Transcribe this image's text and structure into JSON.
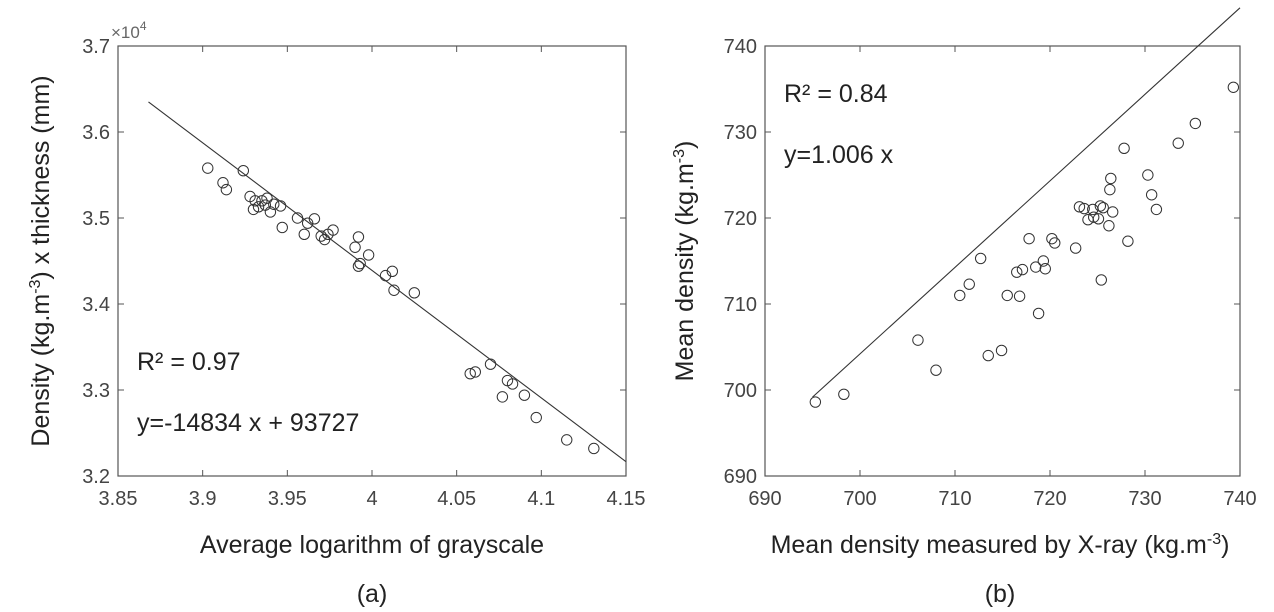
{
  "chart_data": [
    {
      "type": "scatter",
      "panel_label": "(a)",
      "title": "",
      "xlabel": "Average logarithm of grayscale",
      "ylabel_parts": [
        "Density (kg.m",
        "-3",
        ") x thickness (mm)"
      ],
      "xlim": [
        3.85,
        4.15
      ],
      "ylim": [
        32000,
        37000
      ],
      "xticks": [
        3.85,
        3.9,
        3.95,
        4.0,
        4.05,
        4.1,
        4.15
      ],
      "xtick_labels": [
        "3.85",
        "3.9",
        "3.95",
        "4",
        "4.05",
        "4.1",
        "4.15"
      ],
      "yticks": [
        32000,
        33000,
        34000,
        35000,
        36000,
        37000
      ],
      "ytick_labels": [
        "3.2",
        "3.3",
        "3.4",
        "3.5",
        "3.6",
        "3.7"
      ],
      "y_exponent_label": {
        "base": "×10",
        "exp": "4"
      },
      "grid": false,
      "annotations": [
        "R² = 0.97",
        "y=-14834 x + 93727"
      ],
      "fit_line": {
        "slope": -14834,
        "intercept": 93727,
        "x_range": [
          3.868,
          4.15
        ]
      },
      "marker": "open-circle",
      "points": [
        [
          3.903,
          35580
        ],
        [
          3.912,
          35410
        ],
        [
          3.914,
          35330
        ],
        [
          3.924,
          35550
        ],
        [
          3.928,
          35250
        ],
        [
          3.93,
          35100
        ],
        [
          3.931,
          35200
        ],
        [
          3.933,
          35130
        ],
        [
          3.935,
          35200
        ],
        [
          3.937,
          35150
        ],
        [
          3.938,
          35230
        ],
        [
          3.94,
          35070
        ],
        [
          3.942,
          35160
        ],
        [
          3.946,
          35140
        ],
        [
          3.947,
          34890
        ],
        [
          3.956,
          35000
        ],
        [
          3.96,
          34810
        ],
        [
          3.962,
          34940
        ],
        [
          3.966,
          34990
        ],
        [
          3.97,
          34790
        ],
        [
          3.972,
          34750
        ],
        [
          3.974,
          34810
        ],
        [
          3.977,
          34860
        ],
        [
          3.99,
          34660
        ],
        [
          3.992,
          34440
        ],
        [
          3.992,
          34780
        ],
        [
          3.993,
          34470
        ],
        [
          3.998,
          34570
        ],
        [
          4.008,
          34330
        ],
        [
          4.012,
          34380
        ],
        [
          4.013,
          34160
        ],
        [
          4.025,
          34130
        ],
        [
          4.058,
          33190
        ],
        [
          4.061,
          33210
        ],
        [
          4.07,
          33300
        ],
        [
          4.077,
          32920
        ],
        [
          4.08,
          33110
        ],
        [
          4.083,
          33070
        ],
        [
          4.09,
          32940
        ],
        [
          4.097,
          32680
        ],
        [
          4.115,
          32420
        ],
        [
          4.131,
          32320
        ]
      ]
    },
    {
      "type": "scatter",
      "panel_label": "(b)",
      "title": "",
      "xlabel_parts": [
        "Mean density measured by X-ray (kg.m",
        "-3",
        ")"
      ],
      "ylabel_parts": [
        "Mean density (kg.m",
        "-3",
        ")"
      ],
      "xlim": [
        690,
        740
      ],
      "ylim": [
        690,
        740
      ],
      "xticks": [
        690,
        700,
        710,
        720,
        730,
        740
      ],
      "xtick_labels": [
        "690",
        "700",
        "710",
        "720",
        "730",
        "740"
      ],
      "yticks": [
        690,
        700,
        710,
        720,
        730,
        740
      ],
      "ytick_labels": [
        "690",
        "700",
        "710",
        "720",
        "730",
        "740"
      ],
      "grid": false,
      "annotations": [
        "R² = 0.84",
        "y=1.006 x"
      ],
      "fit_line": {
        "slope": 1.006,
        "intercept": 0,
        "x_range": [
          695,
          740
        ]
      },
      "marker": "open-circle",
      "points": [
        [
          695.3,
          698.6
        ],
        [
          698.3,
          699.5
        ],
        [
          706.1,
          705.8
        ],
        [
          708.0,
          702.3
        ],
        [
          710.5,
          711.0
        ],
        [
          711.5,
          712.3
        ],
        [
          712.7,
          715.3
        ],
        [
          713.5,
          704.0
        ],
        [
          714.9,
          704.6
        ],
        [
          715.5,
          711.0
        ],
        [
          716.5,
          713.7
        ],
        [
          716.8,
          710.9
        ],
        [
          717.1,
          714.0
        ],
        [
          717.8,
          717.6
        ],
        [
          718.5,
          714.3
        ],
        [
          718.8,
          708.9
        ],
        [
          719.3,
          715.0
        ],
        [
          719.5,
          714.1
        ],
        [
          720.2,
          717.6
        ],
        [
          720.5,
          717.1
        ],
        [
          722.7,
          716.5
        ],
        [
          723.1,
          721.3
        ],
        [
          723.6,
          721.1
        ],
        [
          724.0,
          719.8
        ],
        [
          724.5,
          721.0
        ],
        [
          724.6,
          720.1
        ],
        [
          725.1,
          719.9
        ],
        [
          725.3,
          721.4
        ],
        [
          725.4,
          712.8
        ],
        [
          725.6,
          721.2
        ],
        [
          726.2,
          719.1
        ],
        [
          726.3,
          723.3
        ],
        [
          726.4,
          724.6
        ],
        [
          726.6,
          720.7
        ],
        [
          727.8,
          728.1
        ],
        [
          728.2,
          717.3
        ],
        [
          730.3,
          725.0
        ],
        [
          730.7,
          722.7
        ],
        [
          731.2,
          721.0
        ],
        [
          733.5,
          728.7
        ],
        [
          735.3,
          731.0
        ],
        [
          739.3,
          735.2
        ]
      ]
    }
  ]
}
